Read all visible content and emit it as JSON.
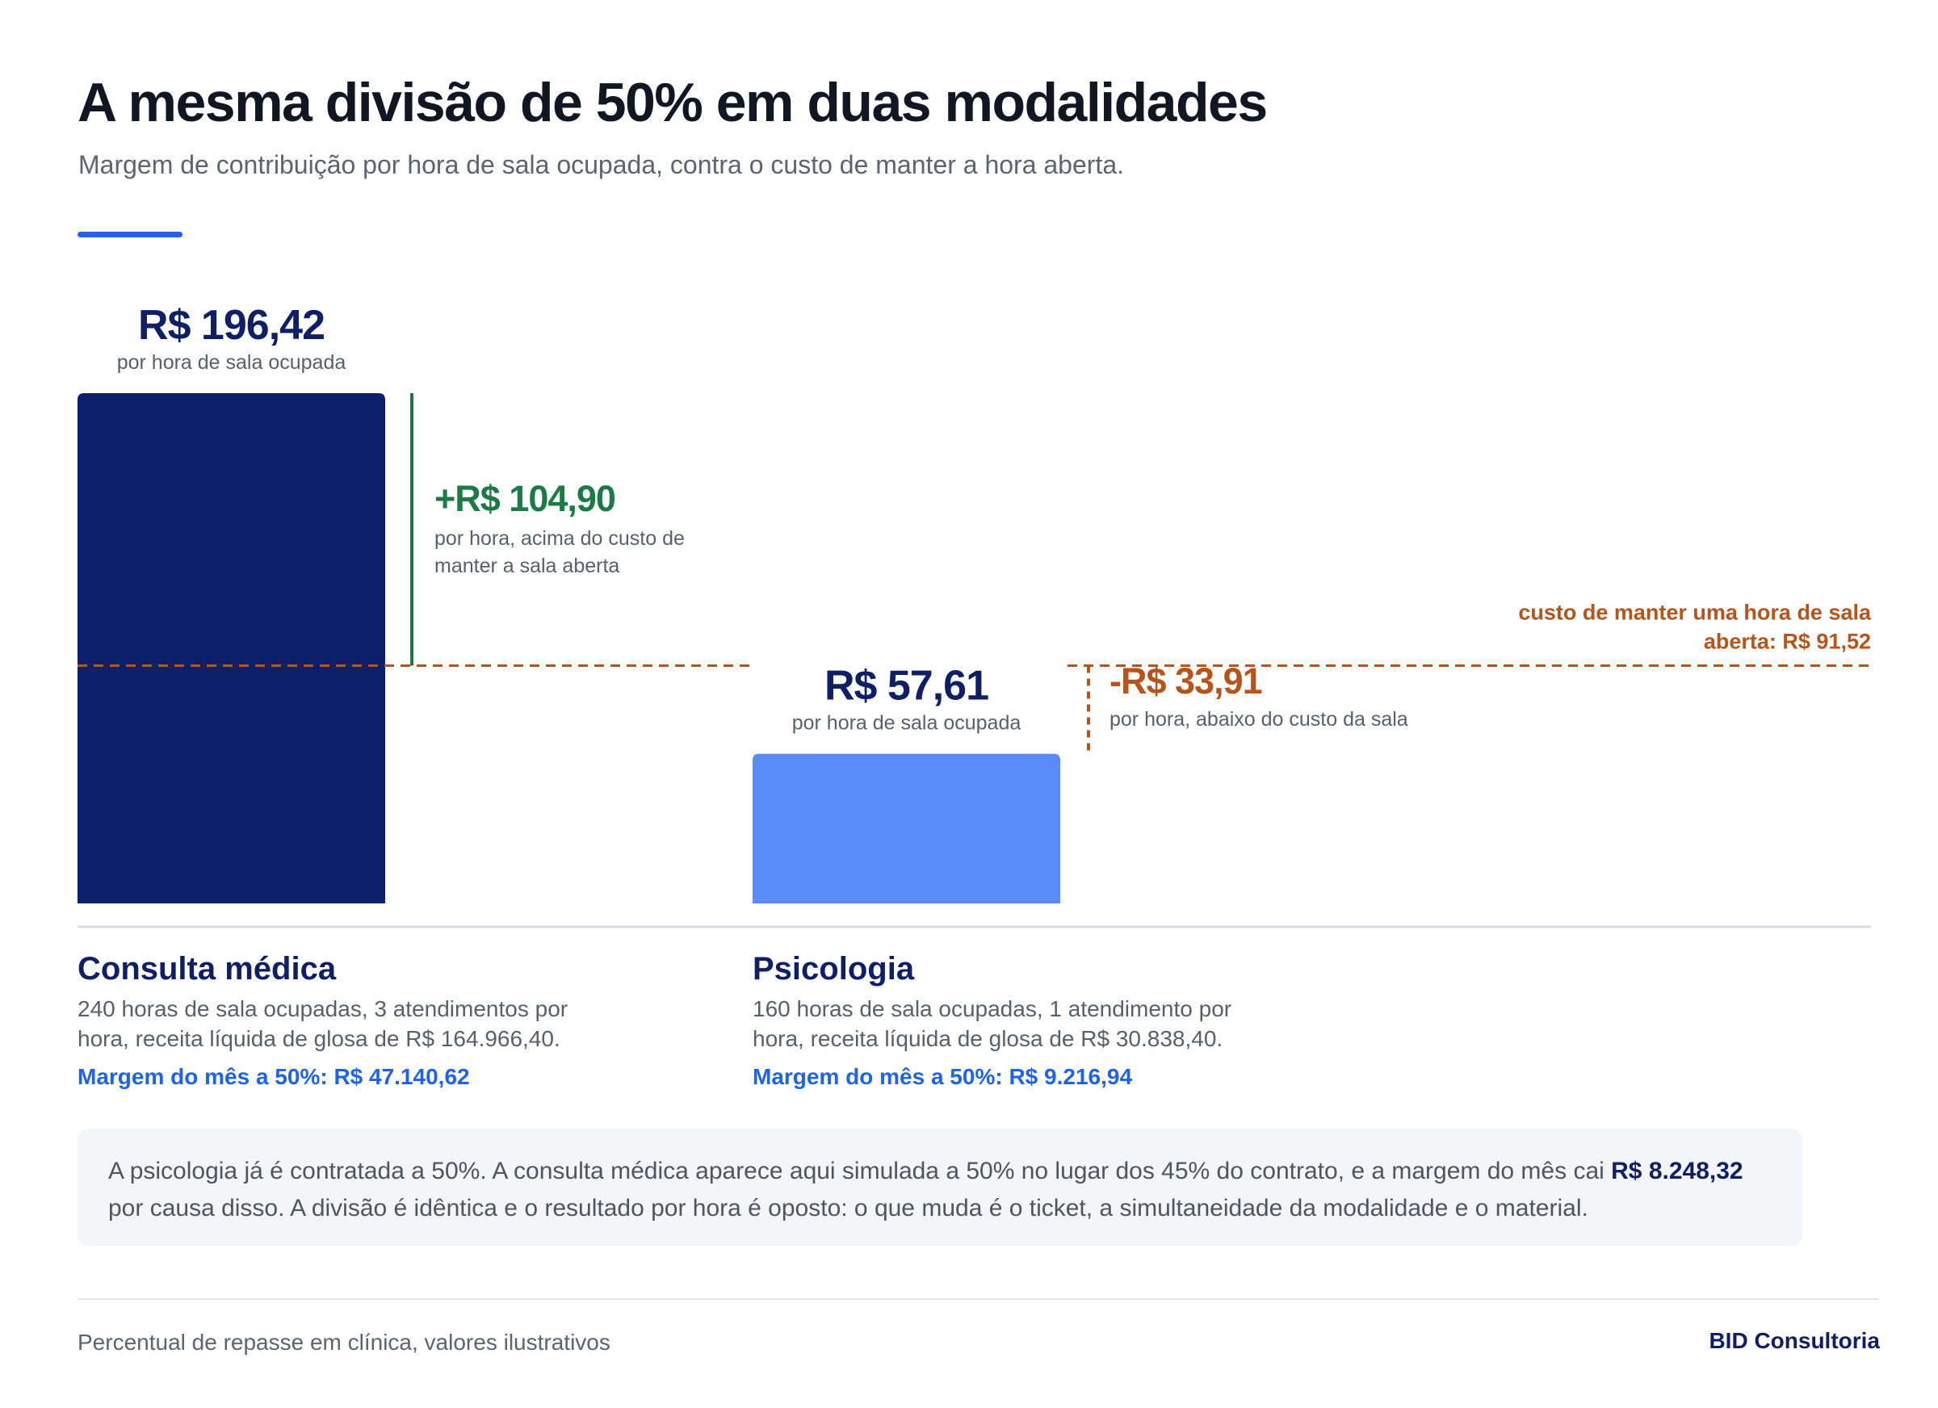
{
  "header": {
    "title": "A mesma divisão de 50% em duas modalidades",
    "subtitle": "Margem de contribuição por hora de sala ocupada, contra o custo de manter a hora aberta."
  },
  "chart_data": {
    "type": "bar",
    "title": "A mesma divisão de 50% em duas modalidades",
    "subtitle": "Margem de contribuição por hora de sala ocupada, contra o custo de manter a hora aberta.",
    "categories": [
      "Consulta médica",
      "Psicologia"
    ],
    "values": [
      196.42,
      57.61
    ],
    "value_labels": [
      "R$ 196,42",
      "R$ 57,61"
    ],
    "value_caption": "por hora de sala ocupada",
    "colors": [
      "#0c1f69",
      "#5a8bfb"
    ],
    "reference_line": {
      "value": 91.52,
      "label": "custo de manter uma hora de sala aberta: R$ 91,52",
      "color": "#b5551c"
    },
    "differences": [
      {
        "value": 104.9,
        "label": "+R$ 104,90",
        "caption": "por hora, acima do custo de manter a sala aberta",
        "color": "#1c7a45"
      },
      {
        "value": -33.91,
        "label": "-R$ 33,91",
        "caption": "por hora, abaixo do custo da sala",
        "color": "#b5551c"
      }
    ],
    "ylim": [
      0,
      196.42
    ],
    "grid": false,
    "xlabel": "",
    "ylabel": ""
  },
  "modalities": [
    {
      "name": "Consulta médica",
      "description": "240 horas de sala ocupadas, 3 atendimentos por hora, receita líquida de glosa de R$ 164.966,40.",
      "margin": "Margem do mês a 50%: R$ 47.140,62"
    },
    {
      "name": "Psicologia",
      "description": "160 horas de sala ocupadas, 1 atendimento por hora, receita líquida de glosa de R$ 30.838,40.",
      "margin": "Margem do mês a 50%: R$ 9.216,94"
    }
  ],
  "note": {
    "text_before": "A psicologia já é contratada a 50%. A consulta médica aparece aqui simulada a 50% no lugar dos 45% do contrato, e a margem do mês cai ",
    "highlight": "R$ 8.248,32",
    "text_after": " por causa disso. A divisão é idêntica e o resultado por hora é oposto: o que muda é o ticket, a simultaneidade da modalidade e o material."
  },
  "footer": {
    "source": "Percentual de repasse em clínica, valores ilustrativos",
    "brand": "BID Consultoria"
  }
}
